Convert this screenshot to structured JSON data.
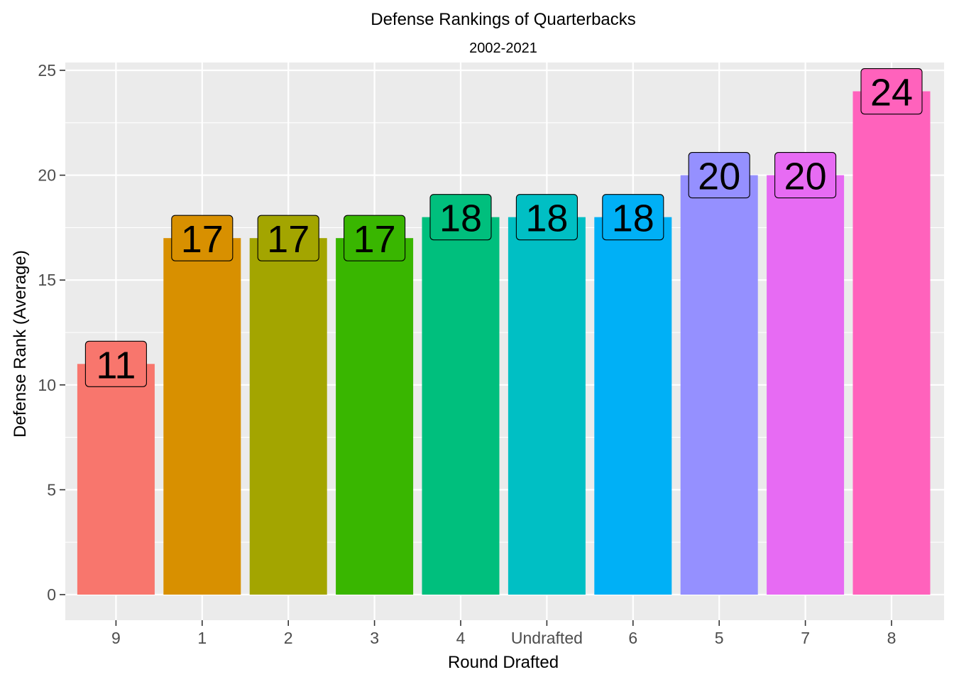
{
  "chart_data": {
    "type": "bar",
    "title": "Defense Rankings of Quarterbacks",
    "subtitle": "2002-2021",
    "xlabel": "Round Drafted",
    "ylabel": "Defense Rank (Average)",
    "ylim": [
      0,
      25
    ],
    "yticks": [
      "0",
      "5",
      "10",
      "15",
      "20",
      "25"
    ],
    "grid": true,
    "legend": "none",
    "categories": [
      "9",
      "1",
      "2",
      "3",
      "4",
      "Undrafted",
      "6",
      "5",
      "7",
      "8"
    ],
    "values": [
      11,
      17,
      17,
      17,
      18,
      18,
      18,
      20,
      20,
      24
    ],
    "labels": [
      "11",
      "17",
      "17",
      "17",
      "18",
      "18",
      "18",
      "20",
      "20",
      "24"
    ],
    "colors": [
      "#F8766D",
      "#D89000",
      "#A3A500",
      "#39B600",
      "#00BF7D",
      "#00BFC4",
      "#00B0F6",
      "#9590FF",
      "#E76BF3",
      "#FF62BC"
    ],
    "panel_background": "#EBEBEB",
    "grid_color": "#FFFFFF"
  }
}
